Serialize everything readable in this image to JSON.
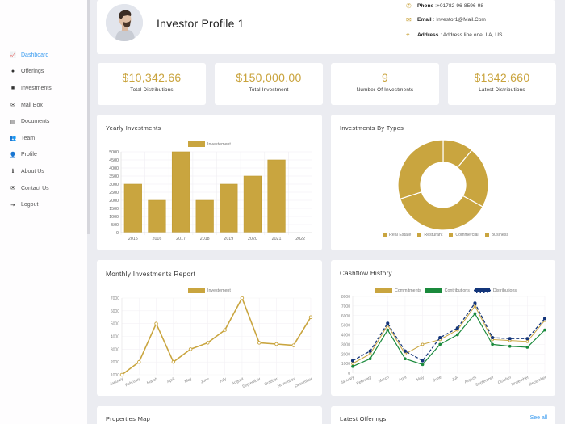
{
  "sidebar": {
    "items": [
      {
        "label": "Dashboard",
        "icon": "chart-line-icon",
        "glyph": "📈",
        "active": true
      },
      {
        "label": "Offerings",
        "icon": "lightbulb-icon",
        "glyph": "●"
      },
      {
        "label": "Investments",
        "icon": "briefcase-icon",
        "glyph": "■"
      },
      {
        "label": "Mail Box",
        "icon": "envelope-icon",
        "glyph": "✉"
      },
      {
        "label": "Documents",
        "icon": "file-signature-icon",
        "glyph": "▤"
      },
      {
        "label": "Team",
        "icon": "users-icon",
        "glyph": "👥"
      },
      {
        "label": "Profile",
        "icon": "user-icon",
        "glyph": "👤"
      },
      {
        "label": "About Us",
        "icon": "info-icon",
        "glyph": "ℹ"
      },
      {
        "label": "Contact Us",
        "icon": "envelope-icon",
        "glyph": "✉"
      },
      {
        "label": "Logout",
        "icon": "sign-out-icon",
        "glyph": "⇥"
      }
    ]
  },
  "profile": {
    "name": "Investor Profile 1",
    "phone_label": "Phone",
    "phone": ":+01782-96-8596-98",
    "email_label": "Email",
    "email": ": Investor1@Mail.Com",
    "address_label": "Address",
    "address": ": Address line one, LA, US"
  },
  "stats": [
    {
      "value": "$10,342.66",
      "label": "Total Distributions"
    },
    {
      "value": "$150,000.00",
      "label": "Total Investment"
    },
    {
      "value": "9",
      "label": "Number Of Investments"
    },
    {
      "value": "$1342.660",
      "label": "Latest Distributions"
    }
  ],
  "panels": {
    "yearly": "Yearly Investments",
    "types": "Investments By Types",
    "monthly": "Monthly Investments Report",
    "cashflow": "Cashflow History",
    "map": "Properties Map",
    "offerings": "Latest Offerings",
    "see_all": "See all"
  },
  "colors": {
    "gold": "#c9a53f",
    "green": "#1a8a3c",
    "navy": "#13357a",
    "link": "#3b9cf0"
  },
  "chart_data": [
    {
      "type": "bar",
      "title": "Yearly Investments",
      "categories": [
        "2015",
        "2016",
        "2017",
        "2018",
        "2019",
        "2020",
        "2021",
        "2022"
      ],
      "series": [
        {
          "name": "Investement",
          "values": [
            3000,
            2000,
            5000,
            2000,
            3000,
            3500,
            4500,
            0
          ]
        }
      ],
      "ylim": [
        0,
        5000
      ],
      "yticks": [
        0,
        500,
        1000,
        1500,
        2000,
        2500,
        3000,
        3500,
        4000,
        4500,
        5000
      ],
      "legend_position": "top",
      "grid": true
    },
    {
      "type": "pie",
      "variant": "doughnut",
      "title": "Investments By Types",
      "categories": [
        "Real Estate",
        "Resturant",
        "Commercial",
        "Business"
      ],
      "values": [
        11,
        22,
        37,
        30
      ],
      "legend_position": "bottom"
    },
    {
      "type": "line",
      "title": "Monthly Investments Report",
      "categories": [
        "January",
        "February",
        "March",
        "April",
        "May",
        "June",
        "July",
        "August",
        "September",
        "October",
        "November",
        "December"
      ],
      "series": [
        {
          "name": "Investement",
          "values": [
            1000,
            2000,
            5000,
            2000,
            3000,
            3500,
            4500,
            7000,
            3500,
            3400,
            3300,
            5500
          ]
        }
      ],
      "ylim": [
        1000,
        7000
      ],
      "yticks": [
        1000,
        2000,
        3000,
        4000,
        5000,
        6000,
        7000
      ],
      "legend_position": "top",
      "grid": true
    },
    {
      "type": "line",
      "title": "Cashflow History",
      "categories": [
        "January",
        "February",
        "March",
        "April",
        "May",
        "June",
        "July",
        "August",
        "September",
        "October",
        "November",
        "December"
      ],
      "series": [
        {
          "name": "Commitments",
          "values": [
            1000,
            2000,
            5000,
            2000,
            3000,
            3500,
            4500,
            7000,
            3500,
            3400,
            3300,
            5500
          ]
        },
        {
          "name": "Contributions",
          "values": [
            700,
            1500,
            4500,
            1500,
            900,
            3000,
            4000,
            6200,
            3000,
            2800,
            2700,
            4500
          ]
        },
        {
          "name": "Distributions",
          "values": [
            1300,
            2300,
            5200,
            2300,
            1300,
            3700,
            4700,
            7300,
            3700,
            3600,
            3600,
            5700
          ]
        }
      ],
      "ylim": [
        0,
        8000
      ],
      "yticks": [
        0,
        1000,
        2000,
        3000,
        4000,
        5000,
        6000,
        7000,
        8000
      ],
      "legend_position": "top",
      "grid": true
    }
  ]
}
